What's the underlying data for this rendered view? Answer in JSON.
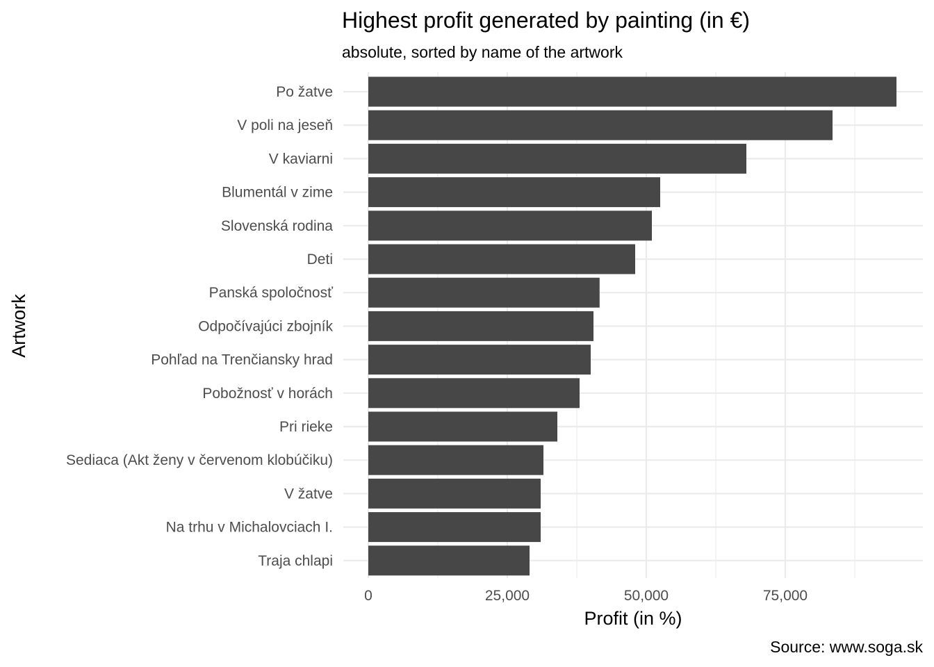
{
  "chart_data": {
    "type": "bar",
    "orientation": "horizontal",
    "title": "Highest profit generated by painting (in €)",
    "subtitle": "absolute, sorted by name of the artwork",
    "xlabel": "Profit (in %)",
    "ylabel": "Artwork",
    "caption": "Source: www.soga.sk",
    "bar_color": "#474747",
    "grid": true,
    "xlim": [
      0,
      95000
    ],
    "x_ticks": [
      0,
      25000,
      50000,
      75000
    ],
    "x_tick_labels": [
      "0",
      "25,000",
      "50,000",
      "75,000"
    ],
    "categories": [
      "Po žatve",
      "V poli na jeseň",
      "V kaviarni",
      "Blumentál v zime",
      "Slovenská rodina",
      "Deti",
      "Panská spoločnosť",
      "Odpočívajúci zbojník",
      "Pohľad na Trenčiansky hrad",
      "Pobožnosť v horách",
      "Pri rieke",
      "Sediaca (Akt ženy v červenom klobúčiku)",
      "V žatve",
      "Na trhu v Michalovciach I.",
      "Traja chlapi"
    ],
    "values": [
      95000,
      83500,
      68000,
      52500,
      51000,
      48000,
      41600,
      40500,
      40000,
      38000,
      34000,
      31500,
      31000,
      31000,
      29000
    ]
  }
}
